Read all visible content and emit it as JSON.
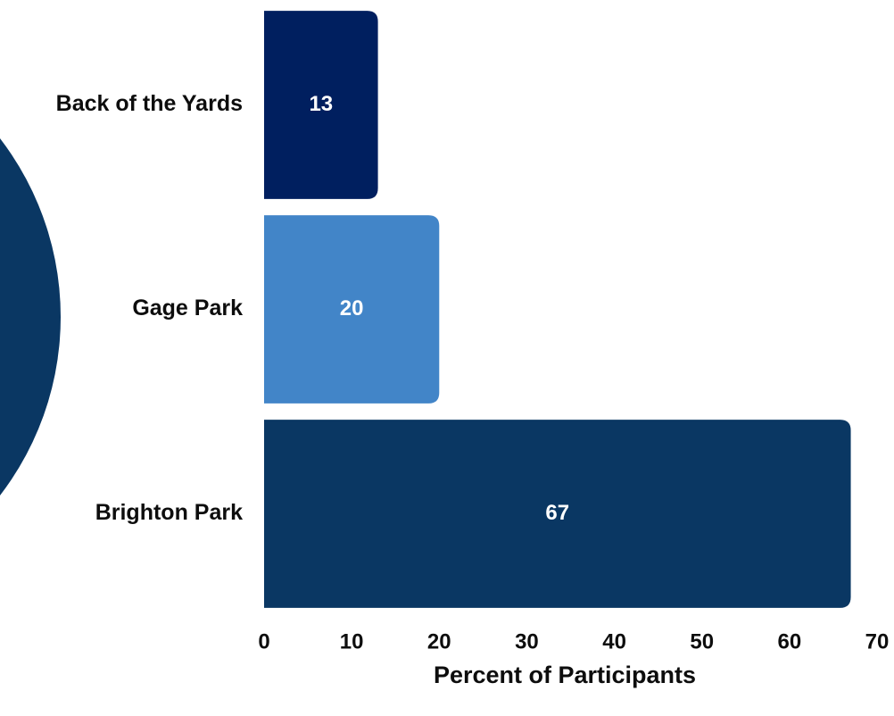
{
  "chart_data": {
    "type": "barh",
    "xlabel": "Percent of Participants",
    "categories": [
      "Back of the Yards",
      "Gage Park",
      "Brighton Park"
    ],
    "values": [
      13,
      20,
      67
    ],
    "colors": [
      "#001f5f",
      "#4285c8",
      "#0a3763"
    ],
    "xlim": [
      0,
      70
    ],
    "xticks": [
      0,
      10,
      20,
      30,
      40,
      50,
      60,
      70
    ],
    "grid": false
  }
}
